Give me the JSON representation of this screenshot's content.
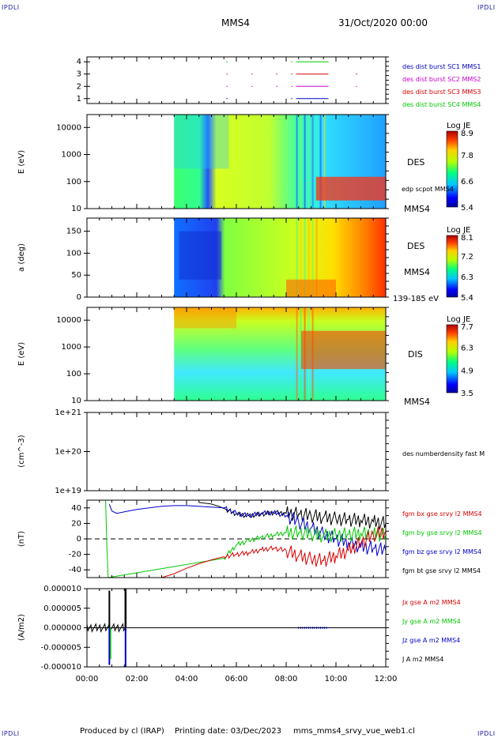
{
  "corners": {
    "top_left": "IPDLI",
    "top_right": "IPDLI",
    "bottom_left": "IPDLI",
    "bottom_right": "IPDLI"
  },
  "header": {
    "spacecraft": "MMS4",
    "datetime": "31/Oct/2020 00:00"
  },
  "footer": {
    "produced_by": "Produced by cl (IRAP)",
    "printing_date": "Printing date: 03/Dec/2023",
    "file": "mms_mms4_srvy_vue_web1.cl"
  },
  "colors": {
    "black": "#000000",
    "red": "#d80000",
    "green": "#00c800",
    "blue": "#0000c8",
    "magenta": "#c800c8"
  },
  "chart_data": [
    {
      "type": "scatter",
      "panel": "burst-availability",
      "yticks": [
        "1",
        "2",
        "3",
        "4"
      ],
      "ylim": [
        0.6,
        4.4
      ],
      "legend": [
        {
          "name": "des dist burst SC1 MMS1",
          "color": "#0000c8"
        },
        {
          "name": "des dist burst SC2 MMS2",
          "color": "#c800c8"
        },
        {
          "name": "des dist burst SC3 MMS3",
          "color": "#d80000"
        },
        {
          "name": "des dist burst SC4 MMS4",
          "color": "#00c800"
        }
      ],
      "segments": [
        {
          "level": 4,
          "color": "#00c800",
          "intervals": [
            [
              5.6,
              5.62
            ],
            [
              8.2,
              8.22
            ],
            [
              8.4,
              9.7
            ]
          ]
        },
        {
          "level": 3,
          "color": "#d80000",
          "intervals": [
            [
              5.6,
              5.62
            ],
            [
              6.6,
              6.62
            ],
            [
              7.6,
              7.62
            ],
            [
              8.2,
              8.22
            ],
            [
              8.4,
              9.7
            ],
            [
              10.8,
              10.82
            ]
          ]
        },
        {
          "level": 2,
          "color": "#c800c8",
          "intervals": [
            [
              5.6,
              5.62
            ],
            [
              6.6,
              6.62
            ],
            [
              7.6,
              7.62
            ],
            [
              8.2,
              8.22
            ],
            [
              8.4,
              9.7
            ],
            [
              10.8,
              10.82
            ]
          ]
        },
        {
          "level": 1,
          "color": "#0000c8",
          "intervals": [
            [
              5.6,
              5.62
            ],
            [
              8.2,
              8.22
            ],
            [
              8.4,
              9.7
            ]
          ]
        }
      ]
    },
    {
      "type": "heatmap",
      "panel": "des-energy",
      "ylabel": "E (eV)",
      "yticks": [
        "10",
        "100",
        "1000",
        "10000"
      ],
      "yscale": "log",
      "ylim": [
        10,
        30000
      ],
      "label": "DES",
      "label2": "edp scpot MMS4",
      "label3": "MMS4",
      "colorbar": {
        "title": "Log JE",
        "ticks": [
          "8.9",
          "7.8",
          "6.6",
          "5.4"
        ],
        "range": [
          5.4,
          8.9
        ]
      },
      "data_start_hour": 3.5
    },
    {
      "type": "heatmap",
      "panel": "des-pitch-angle",
      "ylabel": "a (deg)",
      "yticks": [
        "0",
        "50",
        "100",
        "150"
      ],
      "ylim": [
        0,
        180
      ],
      "label": "DES",
      "label2": "MMS4",
      "label3": "139-185 eV",
      "colorbar": {
        "title": "Log JE",
        "ticks": [
          "8.1",
          "7.2",
          "6.3",
          "5.4"
        ],
        "range": [
          5.4,
          8.1
        ]
      },
      "data_start_hour": 3.5
    },
    {
      "type": "heatmap",
      "panel": "dis-energy",
      "ylabel": "E (eV)",
      "yticks": [
        "10",
        "100",
        "1000",
        "10000"
      ],
      "yscale": "log",
      "ylim": [
        10,
        30000
      ],
      "label": "DIS",
      "label2": "MMS4",
      "colorbar": {
        "title": "Log JE",
        "ticks": [
          "7.7",
          "6.3",
          "4.9",
          "3.5"
        ],
        "range": [
          3.5,
          7.7
        ]
      },
      "data_start_hour": 3.5
    },
    {
      "type": "line",
      "panel": "density",
      "ylabel": "(cm^-3)",
      "yticks": [
        "1e+19",
        "1e+20",
        "1e+21"
      ],
      "yscale": "log",
      "legend": [
        {
          "name": "des numberdensity fast M",
          "color": "#000000"
        }
      ],
      "series": []
    },
    {
      "type": "line",
      "panel": "magnetic-field",
      "ylabel": "(nT)",
      "yticks": [
        "-40",
        "-20",
        "0",
        "20",
        "40"
      ],
      "ylim": [
        -50,
        50
      ],
      "legend": [
        {
          "name": "fgm bx gse srvy l2 MMS4",
          "color": "#d80000"
        },
        {
          "name": "fgm by gse srvy l2 MMS4",
          "color": "#00c800"
        },
        {
          "name": "fgm bz gse srvy l2 MMS4",
          "color": "#0000c8"
        },
        {
          "name": "fgm bt gse srvy l2 MMS4",
          "color": "#000000"
        }
      ],
      "series": [
        {
          "name": "fgm bt gse srvy l2 MMS4",
          "color": "#000000",
          "x": [
            4.5,
            5.0,
            5.3,
            5.6,
            6.0,
            6.5,
            7.0,
            7.5,
            8.0,
            8.5,
            9.0,
            9.5,
            10.0,
            10.5,
            11.0,
            11.5,
            12.0
          ],
          "y": [
            47,
            45,
            42,
            38,
            32,
            30,
            32,
            34,
            33,
            32,
            30,
            28,
            26,
            25,
            24,
            22,
            20
          ]
        },
        {
          "name": "fgm bz gse srvy l2 MMS4",
          "color": "#0000c8",
          "x": [
            0.9,
            1.0,
            1.2,
            1.5,
            2.0,
            2.5,
            3.0,
            3.5,
            4.0,
            4.5,
            5.0,
            5.5,
            6.0,
            6.5,
            7.0,
            7.5,
            8.0,
            8.5,
            9.0,
            9.5,
            10.0,
            10.5,
            11.0,
            11.5,
            12.0
          ],
          "y": [
            45,
            36,
            33,
            35,
            38,
            40,
            42,
            43,
            43,
            42,
            41,
            40,
            33,
            30,
            33,
            34,
            30,
            22,
            14,
            6,
            0,
            -5,
            -10,
            -12,
            -15
          ]
        },
        {
          "name": "fgm by gse srvy l2 MMS4",
          "color": "#00c800",
          "x": [
            0.75,
            0.8,
            0.85,
            5.5,
            6.0,
            6.5,
            7.0,
            7.5,
            8.0,
            8.5,
            9.0,
            9.5,
            10.0,
            10.5,
            11.0,
            11.5,
            12.0
          ],
          "y": [
            50,
            -10,
            -50,
            -25,
            -8,
            -2,
            2,
            5,
            8,
            8,
            6,
            4,
            5,
            6,
            7,
            6,
            5
          ]
        },
        {
          "name": "fgm bx gse srvy l2 MMS4",
          "color": "#d80000",
          "x": [
            3.0,
            3.5,
            4.0,
            4.5,
            5.0,
            5.5,
            6.0,
            6.5,
            7.0,
            7.5,
            8.0,
            8.5,
            9.0,
            9.5,
            10.0,
            10.5,
            11.0,
            11.5,
            12.0
          ],
          "y": [
            -50,
            -45,
            -38,
            -32,
            -27,
            -23,
            -20,
            -18,
            -14,
            -12,
            -15,
            -22,
            -26,
            -28,
            -22,
            -15,
            -5,
            5,
            10
          ]
        }
      ]
    },
    {
      "type": "line",
      "panel": "current-density",
      "ylabel": "(A/m2)",
      "yticks": [
        "-0.000010",
        "-0.000005",
        "0.000000",
        "0.000005",
        "0.000010"
      ],
      "ylim": [
        -1e-05,
        1e-05
      ],
      "legend": [
        {
          "name": "Jx gse A m2 MMS4",
          "color": "#d80000"
        },
        {
          "name": "Jy gse A m2 MMS4",
          "color": "#00c800"
        },
        {
          "name": "Jz gse A m2 MMS4",
          "color": "#0000c8"
        },
        {
          "name": "J A m2 MMS4",
          "color": "#000000"
        }
      ],
      "xlabel": "",
      "xticks": [
        "00:00",
        "02:00",
        "04:00",
        "06:00",
        "08:00",
        "10:00",
        "12:00"
      ],
      "xlim": [
        0,
        12
      ],
      "series": []
    }
  ]
}
